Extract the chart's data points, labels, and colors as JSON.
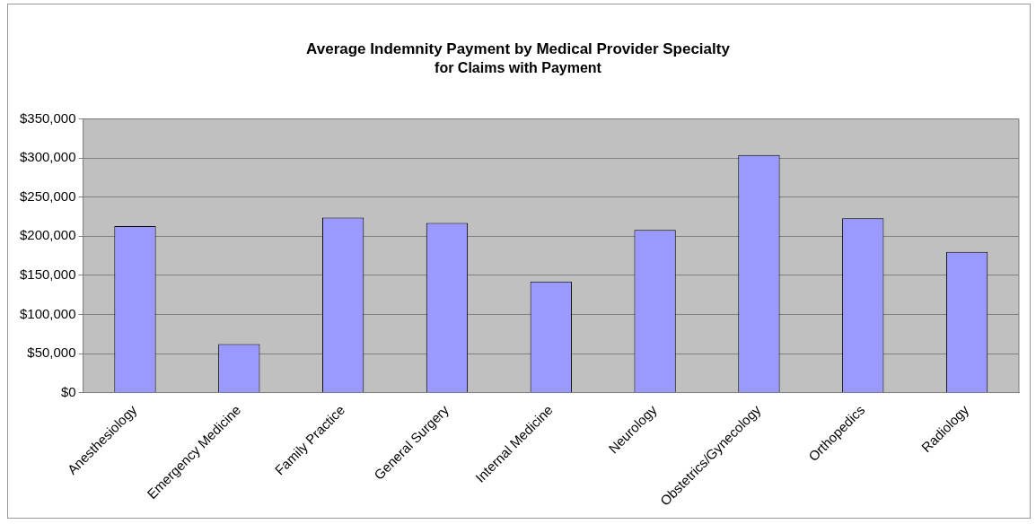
{
  "chart_data": {
    "type": "bar",
    "title": "Average Indemnity Payment by Medical Provider Specialty",
    "subtitle": "for Claims with Payment",
    "categories": [
      "Anesthesiology",
      "Emergency Medicine",
      "Family Practice",
      "General Surgery",
      "Internal Medicine",
      "Neurology",
      "Obstetrics/Gynecology",
      "Orthopedics",
      "Radiology"
    ],
    "values": [
      213000,
      62000,
      224000,
      217000,
      142000,
      208000,
      304000,
      223000,
      180000
    ],
    "color": "#9999ff",
    "ylim": [
      0,
      350000
    ],
    "yticks": [
      {
        "value": 0,
        "label": "$0"
      },
      {
        "value": 50000,
        "label": "$50,000"
      },
      {
        "value": 100000,
        "label": "$100,000"
      },
      {
        "value": 150000,
        "label": "$150,000"
      },
      {
        "value": 200000,
        "label": "$200,000"
      },
      {
        "value": 250000,
        "label": "$250,000"
      },
      {
        "value": 300000,
        "label": "$300,000"
      },
      {
        "value": 350000,
        "label": "$350,000"
      }
    ],
    "grid": "y",
    "legend": false
  }
}
